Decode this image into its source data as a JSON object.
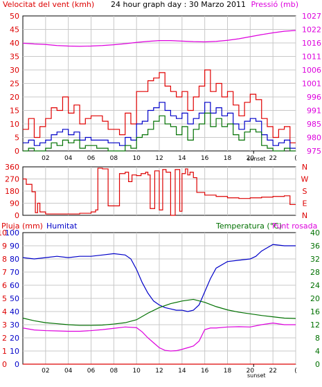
{
  "colors": {
    "wind_gust": "#e00000",
    "wind_avg": "#0000c8",
    "wind_min": "#007000",
    "pressure": "#dd00dd",
    "direction": "#dd0000",
    "rain": "#dd0000",
    "humidity": "#0000c8",
    "temperature": "#007000",
    "dewpoint": "#dd00dd",
    "grid": "#c8c8c8",
    "frame": "#000000"
  },
  "chart_data": [
    {
      "type": "line",
      "panel": "wind_pressure",
      "title": "24 hour graph day : 30 Marzo 2011",
      "left_label": "Velocitat del vent (kmh)",
      "right_label": "Pressió (mb)",
      "ylim_left": [
        0,
        50
      ],
      "ylim_right": [
        975,
        1027
      ],
      "yticks_left": [
        "0",
        "5",
        "10",
        "15",
        "20",
        "25",
        "30",
        "35",
        "40",
        "45",
        "50"
      ],
      "yticks_right": [
        "975",
        "980",
        "985",
        "991",
        "996",
        "1001",
        "1006",
        "1011",
        "1016",
        "1022",
        "1027"
      ],
      "x_range_hours": [
        0,
        24
      ],
      "x_ticks": [
        "02",
        "04",
        "06",
        "08",
        "10",
        "12",
        "14",
        "16",
        "18",
        "20",
        "22",
        "("
      ],
      "sunset_label": "sunset",
      "sunset_hour": 20.3,
      "series": [
        {
          "key": "wind_gust",
          "color_key": "wind_gust",
          "axis": "left",
          "style": "step",
          "x": [
            0,
            0.5,
            1,
            1.5,
            2,
            2.5,
            3,
            3.5,
            4,
            4.5,
            5,
            5.5,
            6,
            6.5,
            7,
            7.5,
            8,
            8.5,
            9,
            9.5,
            10,
            10.5,
            11,
            11.5,
            12,
            12.5,
            13,
            13.5,
            14,
            14.5,
            15,
            15.5,
            16,
            16.5,
            17,
            17.5,
            18,
            18.5,
            19,
            19.5,
            20,
            20.5,
            21,
            21.5,
            22,
            22.5,
            23,
            23.5
          ],
          "y": [
            8,
            12,
            5,
            9,
            12,
            16,
            15,
            20,
            14,
            17,
            10,
            12,
            13,
            13,
            11,
            8,
            8,
            6,
            14,
            10,
            22,
            22,
            26,
            27,
            29,
            24,
            22,
            20,
            22,
            15,
            20,
            24,
            30,
            22,
            25,
            20,
            22,
            17,
            13,
            18,
            21,
            19,
            12,
            9,
            5,
            8,
            9,
            3
          ]
        },
        {
          "key": "wind_avg",
          "color_key": "wind_avg",
          "axis": "left",
          "style": "step",
          "x": [
            0,
            0.5,
            1,
            1.5,
            2,
            2.5,
            3,
            3.5,
            4,
            4.5,
            5,
            5.5,
            6,
            6.5,
            7,
            7.5,
            8,
            8.5,
            9,
            9.5,
            10,
            10.5,
            11,
            11.5,
            12,
            12.5,
            13,
            13.5,
            14,
            14.5,
            15,
            15.5,
            16,
            16.5,
            17,
            17.5,
            18,
            18.5,
            19,
            19.5,
            20,
            20.5,
            21,
            21.5,
            22,
            22.5,
            23,
            23.5
          ],
          "y": [
            3,
            4,
            2,
            3,
            4,
            6,
            7,
            8,
            6,
            7,
            4,
            5,
            4,
            4,
            4,
            3,
            3,
            2,
            5,
            4,
            10,
            11,
            15,
            16,
            18,
            15,
            13,
            12,
            14,
            10,
            12,
            14,
            18,
            14,
            16,
            13,
            14,
            10,
            8,
            11,
            12,
            11,
            6,
            4,
            2,
            3,
            4,
            1
          ]
        },
        {
          "key": "wind_min",
          "color_key": "wind_min",
          "axis": "left",
          "style": "step",
          "x": [
            0,
            0.5,
            1,
            1.5,
            2,
            2.5,
            3,
            3.5,
            4,
            4.5,
            5,
            5.5,
            6,
            6.5,
            7,
            7.5,
            8,
            8.5,
            9,
            9.5,
            10,
            10.5,
            11,
            11.5,
            12,
            12.5,
            13,
            13.5,
            14,
            14.5,
            15,
            15.5,
            16,
            16.5,
            17,
            17.5,
            18,
            18.5,
            19,
            19.5,
            20,
            20.5,
            21,
            21.5,
            22,
            22.5,
            23,
            23.5
          ],
          "y": [
            0,
            1,
            0,
            0,
            1,
            3,
            2,
            4,
            3,
            4,
            1,
            2,
            2,
            1,
            1,
            0,
            0,
            0,
            2,
            1,
            5,
            6,
            8,
            11,
            13,
            10,
            9,
            6,
            9,
            4,
            8,
            10,
            14,
            9,
            12,
            9,
            10,
            6,
            4,
            7,
            8,
            7,
            2,
            1,
            0,
            0,
            1,
            0
          ]
        },
        {
          "key": "pressure",
          "color_key": "pressure",
          "axis": "right",
          "style": "line",
          "x": [
            0,
            1,
            2,
            3,
            4,
            5,
            6,
            7,
            8,
            9,
            10,
            11,
            12,
            13,
            14,
            15,
            16,
            17,
            18,
            19,
            20,
            21,
            22,
            23,
            24
          ],
          "y": [
            1016.5,
            1016.2,
            1016.0,
            1015.6,
            1015.4,
            1015.3,
            1015.4,
            1015.6,
            1015.9,
            1016.3,
            1016.8,
            1017.2,
            1017.5,
            1017.5,
            1017.3,
            1017.1,
            1017.0,
            1017.2,
            1017.6,
            1018.2,
            1019.0,
            1019.8,
            1020.5,
            1021.1,
            1021.4
          ]
        }
      ]
    },
    {
      "type": "line",
      "panel": "direction",
      "ylim": [
        0,
        360
      ],
      "yticks_left": [
        "0",
        "90",
        "180",
        "270",
        "360"
      ],
      "yticks_right": [
        "N",
        "E",
        "S",
        "W",
        "N"
      ],
      "series": [
        {
          "key": "direction",
          "color_key": "direction",
          "axis": "left",
          "style": "step",
          "x": [
            0,
            0.3,
            0.8,
            1.1,
            1.3,
            1.5,
            2,
            3,
            4,
            5,
            6,
            6.4,
            6.6,
            7,
            7.5,
            8.3,
            8.5,
            9,
            9.3,
            9.6,
            10,
            10.4,
            10.8,
            11,
            11.2,
            11.6,
            12,
            12.3,
            12.6,
            13,
            13.4,
            13.8,
            14,
            14.3,
            14.5,
            14.7,
            15,
            15.3,
            16,
            17,
            18,
            19,
            20,
            21,
            22,
            23,
            23.5,
            24
          ],
          "y": [
            270,
            230,
            175,
            20,
            90,
            25,
            10,
            10,
            10,
            15,
            25,
            40,
            350,
            345,
            70,
            70,
            310,
            320,
            250,
            300,
            295,
            310,
            320,
            300,
            50,
            330,
            40,
            340,
            320,
            0,
            340,
            30,
            310,
            345,
            300,
            320,
            280,
            170,
            150,
            140,
            130,
            125,
            130,
            135,
            140,
            145,
            80,
            80
          ]
        }
      ]
    },
    {
      "type": "line",
      "panel": "humidity_temperature",
      "left_label": "Pluja (mm)",
      "left_label2": "Humitat",
      "right_label": "Temperatura (°C)",
      "right_label2": "Punt rosada",
      "ylim_rain": [
        0,
        10
      ],
      "ylim_humidity": [
        0,
        100
      ],
      "ylim_right": [
        0,
        40
      ],
      "yticks_rain": [
        "0",
        "1",
        "2",
        "3",
        "4",
        "5",
        "6",
        "7",
        "8",
        "9",
        "10"
      ],
      "yticks_humidity": [
        "0",
        "10",
        "20",
        "30",
        "40",
        "50",
        "60",
        "70",
        "80",
        "90",
        "100"
      ],
      "yticks_right": [
        "0",
        "4",
        "8",
        "12",
        "16",
        "20",
        "24",
        "28",
        "32",
        "36",
        "40"
      ],
      "x_ticks": [
        "02",
        "04",
        "06",
        "08",
        "10",
        "12",
        "14",
        "16",
        "18",
        "20",
        "22",
        "("
      ],
      "sunset_label": "sunset",
      "series": [
        {
          "key": "rain",
          "color_key": "rain",
          "axis": "rain",
          "style": "line",
          "x": [
            0,
            24
          ],
          "y": [
            0,
            0
          ]
        },
        {
          "key": "humidity",
          "color_key": "humidity",
          "axis": "humidity",
          "style": "line",
          "x": [
            0,
            1,
            2,
            3,
            4,
            5,
            6,
            7,
            8,
            9,
            9.5,
            10,
            10.5,
            11,
            11.5,
            12,
            12.5,
            13,
            13.5,
            14,
            14.5,
            15,
            15.5,
            16,
            16.5,
            17,
            18,
            19,
            20,
            20.5,
            21,
            22,
            23,
            24
          ],
          "y": [
            81,
            80,
            81,
            82,
            81,
            82,
            82,
            83,
            84,
            83,
            80,
            72,
            62,
            54,
            48,
            45,
            43,
            42,
            41,
            41,
            40,
            41,
            45,
            55,
            65,
            73,
            78,
            79,
            80,
            82,
            86,
            91,
            90,
            90
          ]
        },
        {
          "key": "temperature",
          "color_key": "temperature",
          "axis": "right",
          "style": "line",
          "x": [
            0,
            1,
            2,
            3,
            4,
            5,
            6,
            7,
            8,
            9,
            10,
            11,
            12,
            13,
            14,
            15,
            16,
            17,
            18,
            19,
            20,
            21,
            22,
            23,
            24
          ],
          "y": [
            14.0,
            13.2,
            12.6,
            12.3,
            12.0,
            11.8,
            11.8,
            11.9,
            12.2,
            12.6,
            13.5,
            15.5,
            17.2,
            18.4,
            19.2,
            19.7,
            18.8,
            17.5,
            16.5,
            15.8,
            15.3,
            14.8,
            14.4,
            14.0,
            13.9
          ]
        },
        {
          "key": "dewpoint",
          "color_key": "dewpoint",
          "axis": "right",
          "style": "line",
          "x": [
            0,
            1,
            2,
            3,
            4,
            5,
            6,
            7,
            8,
            9,
            10,
            10.5,
            11,
            11.5,
            12,
            12.5,
            13,
            13.5,
            14,
            14.5,
            15,
            15.5,
            16,
            16.5,
            17,
            18,
            19,
            20,
            21,
            22,
            23,
            24
          ],
          "y": [
            11.0,
            10.4,
            10.2,
            10.1,
            10.0,
            10.0,
            10.2,
            10.5,
            10.9,
            11.3,
            11.1,
            9.8,
            8.0,
            6.5,
            5.0,
            4.2,
            4.0,
            4.1,
            4.5,
            5.0,
            5.5,
            7.0,
            10.5,
            11.0,
            11.0,
            11.3,
            11.4,
            11.3,
            12.0,
            12.5,
            12.0,
            12.0
          ]
        }
      ]
    }
  ]
}
